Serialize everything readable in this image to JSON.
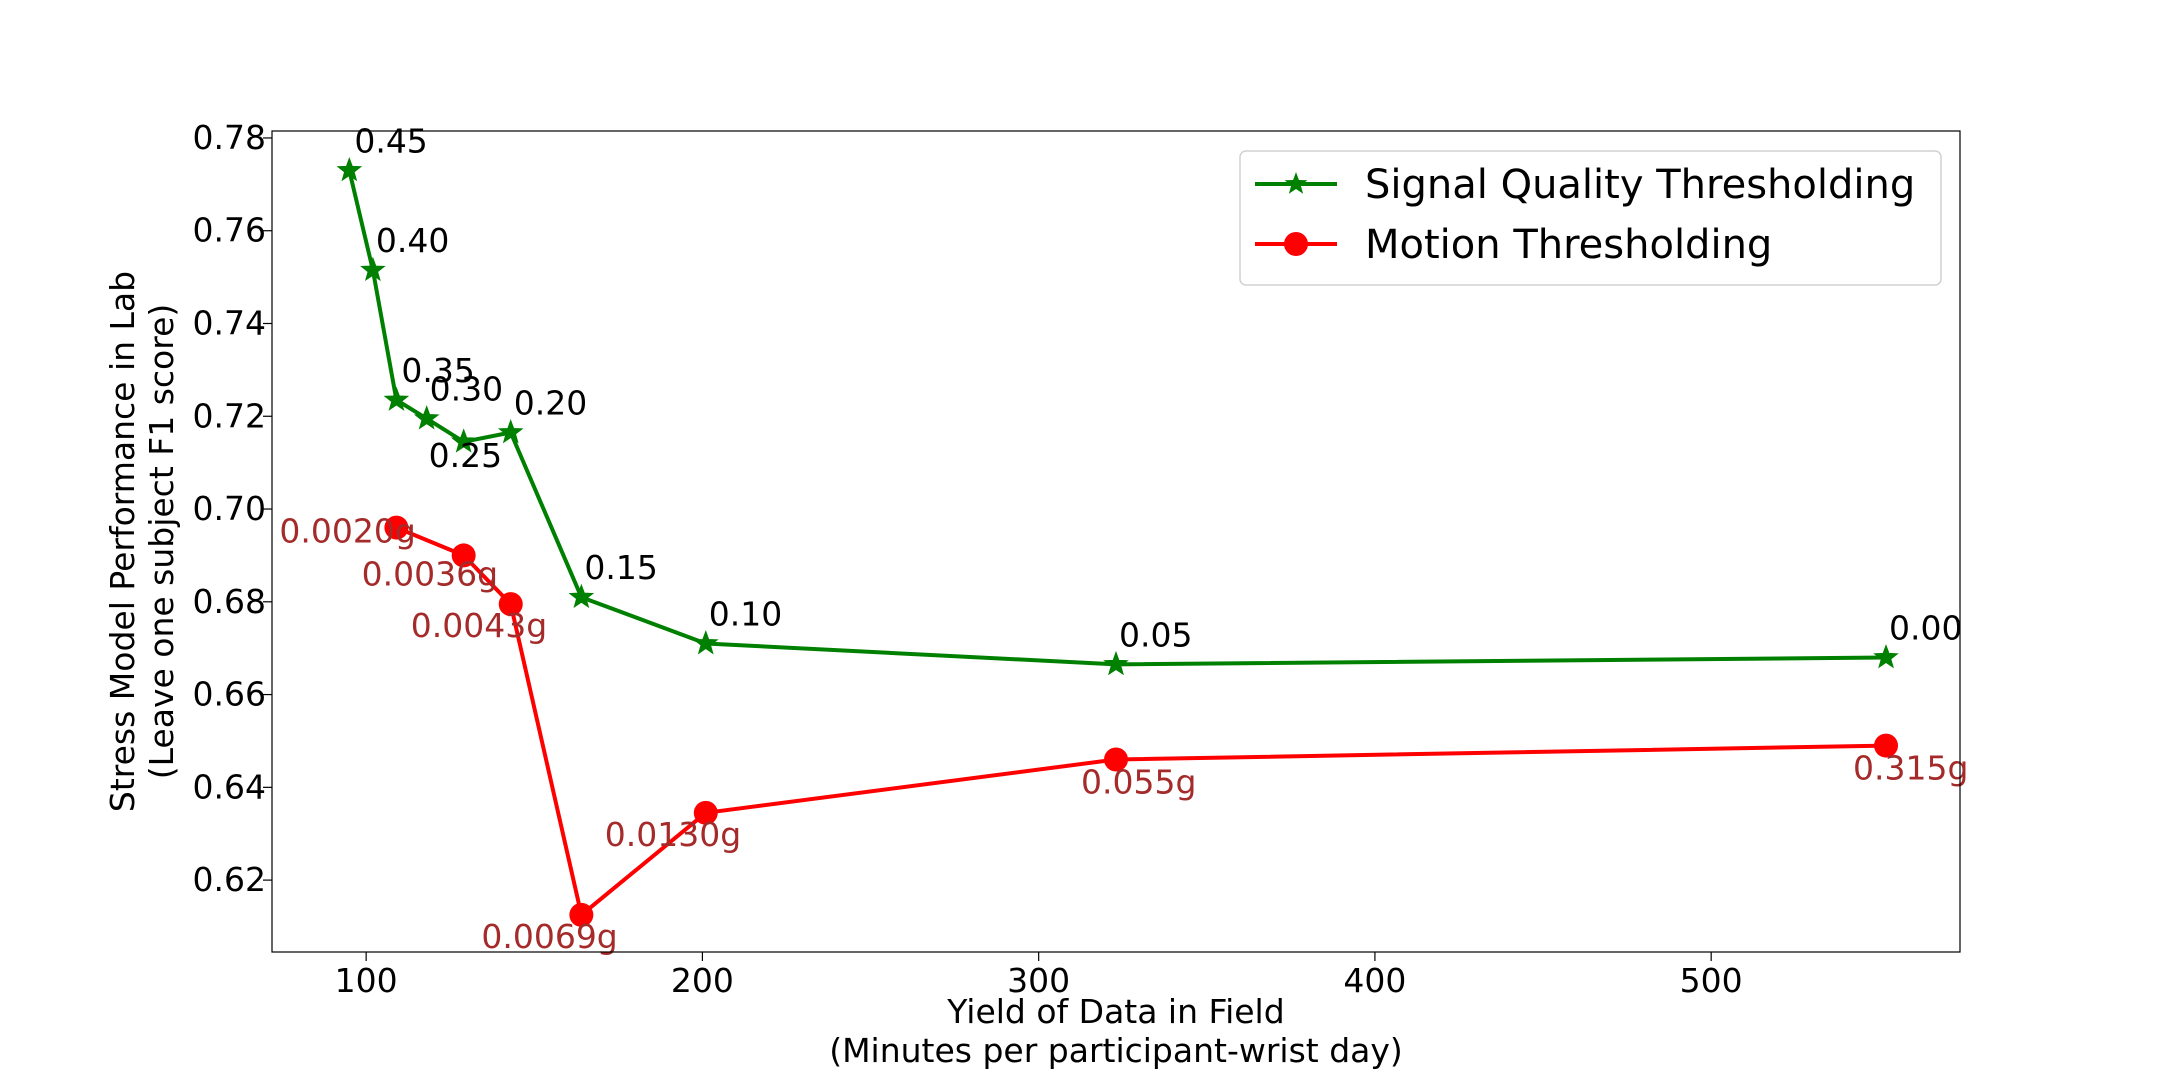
{
  "chart_data": {
    "type": "line",
    "title": "",
    "xlabel": [
      "Yield of Data in Field",
      "(Minutes per participant-wrist day)"
    ],
    "ylabel": [
      "Stress Model Performance in Lab",
      "(Leave one subject F1 score)"
    ],
    "xlim": [
      72,
      574
    ],
    "ylim": [
      0.6045,
      0.7815
    ],
    "xticks": [
      100,
      200,
      300,
      400,
      500
    ],
    "yticks": [
      0.62,
      0.64,
      0.66,
      0.68,
      0.7,
      0.72,
      0.74,
      0.76,
      0.78
    ],
    "xtick_labels": [
      "100",
      "200",
      "300",
      "400",
      "500"
    ],
    "ytick_labels": [
      "0.62",
      "0.64",
      "0.66",
      "0.68",
      "0.70",
      "0.72",
      "0.74",
      "0.76",
      "0.78"
    ],
    "grid": false,
    "legend": {
      "position": "top-right"
    },
    "series": [
      {
        "name": "Signal Quality Thresholding",
        "color": "#008000",
        "label_color": "#000000",
        "marker": "star",
        "x": [
          95,
          102,
          109,
          118,
          129,
          143,
          164,
          201,
          323,
          552
        ],
        "y": [
          0.773,
          0.7515,
          0.7235,
          0.7195,
          0.7145,
          0.7165,
          0.681,
          0.671,
          0.6665,
          0.668
        ],
        "point_labels": [
          "0.45",
          "0.40",
          "0.35",
          "0.30",
          "0.25",
          "0.20",
          "0.15",
          "0.10",
          "0.05",
          "0.00"
        ]
      },
      {
        "name": "Motion Thresholding",
        "color": "#ff0000",
        "label_color": "#a52a2a",
        "marker": "circle",
        "x": [
          109,
          129,
          143,
          164,
          201,
          323,
          552
        ],
        "y": [
          0.696,
          0.69,
          0.6795,
          0.6125,
          0.6345,
          0.646,
          0.649
        ],
        "point_labels": [
          "0.0020g",
          "0.0036g",
          "0.0043g",
          "0.0069g",
          "0.0130g",
          "0.055g",
          "0.315g"
        ]
      }
    ]
  }
}
